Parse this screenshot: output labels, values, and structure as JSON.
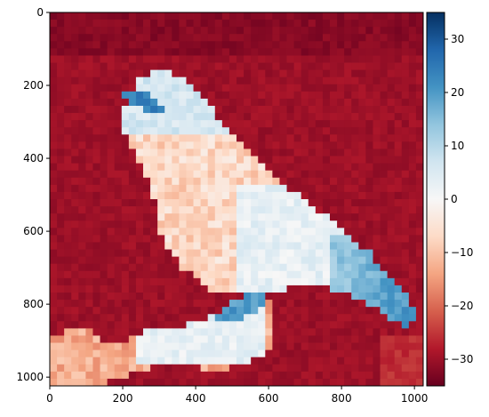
{
  "chart_data": {
    "type": "heatmap",
    "title": "",
    "xlabel": "",
    "ylabel": "",
    "colormap": "RdBu",
    "description_of_content": "false-colour image of a small bird perched on a branch",
    "grid_size": [
      52,
      52
    ],
    "x_range": [
      0,
      1024
    ],
    "y_range": [
      0,
      1024
    ],
    "y_inverted": true,
    "x_ticks": [
      0,
      200,
      400,
      600,
      800,
      1000
    ],
    "y_ticks": [
      0,
      200,
      400,
      600,
      800,
      1000
    ],
    "x_tick_labels": [
      "0",
      "200",
      "400",
      "600",
      "800",
      "1000"
    ],
    "y_tick_labels": [
      "0",
      "200",
      "400",
      "600",
      "800",
      "1000"
    ],
    "color_range": [
      -35,
      35
    ],
    "colorbar_ticks": [
      30,
      20,
      10,
      0,
      -10,
      -20,
      -30
    ],
    "colorbar_tick_labels": [
      "30",
      "20",
      "10",
      "0",
      "−10",
      "−20",
      "−30"
    ],
    "background_value": -30,
    "regions": [
      {
        "name": "bird-body",
        "value_range": [
          -12,
          6
        ]
      },
      {
        "name": "bird-head",
        "value_range": [
          3,
          10
        ]
      },
      {
        "name": "beak",
        "value": 24
      },
      {
        "name": "feet",
        "value": 22
      },
      {
        "name": "tail",
        "value_range": [
          8,
          22
        ]
      },
      {
        "name": "branch-bottom-left",
        "value_range": [
          -18,
          -8
        ]
      },
      {
        "name": "branch-center",
        "value_range": [
          0,
          8
        ]
      }
    ]
  },
  "colors": {
    "cmap_stops": [
      "#67001f",
      "#b2182b",
      "#d6604d",
      "#f4a582",
      "#fddbc7",
      "#f7f7f7",
      "#d1e5f0",
      "#92c5de",
      "#4393c3",
      "#2166ac",
      "#053061"
    ]
  }
}
